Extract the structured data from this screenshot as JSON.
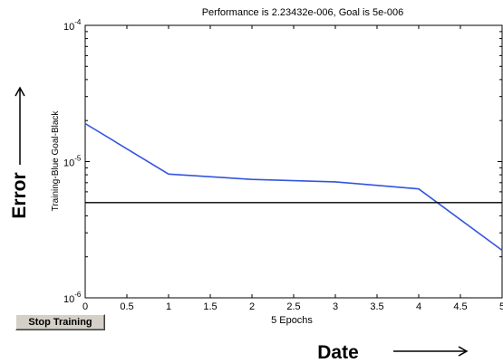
{
  "chart_data": {
    "type": "line",
    "title": "Performance is 2.23432e-006, Goal is 5e-006",
    "xlabel": "5 Epochs",
    "ylabel": "Training-Blue  Goal-Black",
    "xlim": [
      0,
      5
    ],
    "ylim": [
      1e-06,
      0.0001
    ],
    "y_scale": "log",
    "grid": false,
    "x_ticks": [
      "0",
      "0.5",
      "1",
      "1.5",
      "2",
      "2.5",
      "3",
      "3.5",
      "4",
      "4.5",
      "5"
    ],
    "y_ticks": [
      {
        "base": "10",
        "exp": "-4",
        "value": 0.0001
      },
      {
        "base": "10",
        "exp": "-5",
        "value": 1e-05
      },
      {
        "base": "10",
        "exp": "-6",
        "value": 1e-06
      }
    ],
    "series": [
      {
        "color": "#3355dd",
        "x": [
          0,
          1,
          2,
          3,
          4,
          5
        ],
        "y": [
          1.9e-05,
          8.1e-06,
          7.4e-06,
          7.1e-06,
          6.3e-06,
          2.23432e-06
        ]
      },
      {
        "color": "#000000",
        "x": [
          0,
          5
        ],
        "y": [
          5e-06,
          5e-06
        ]
      }
    ]
  },
  "annotations": {
    "y_big": "Error",
    "x_big": "Date"
  },
  "controls": {
    "stop_label": "Stop Training"
  }
}
